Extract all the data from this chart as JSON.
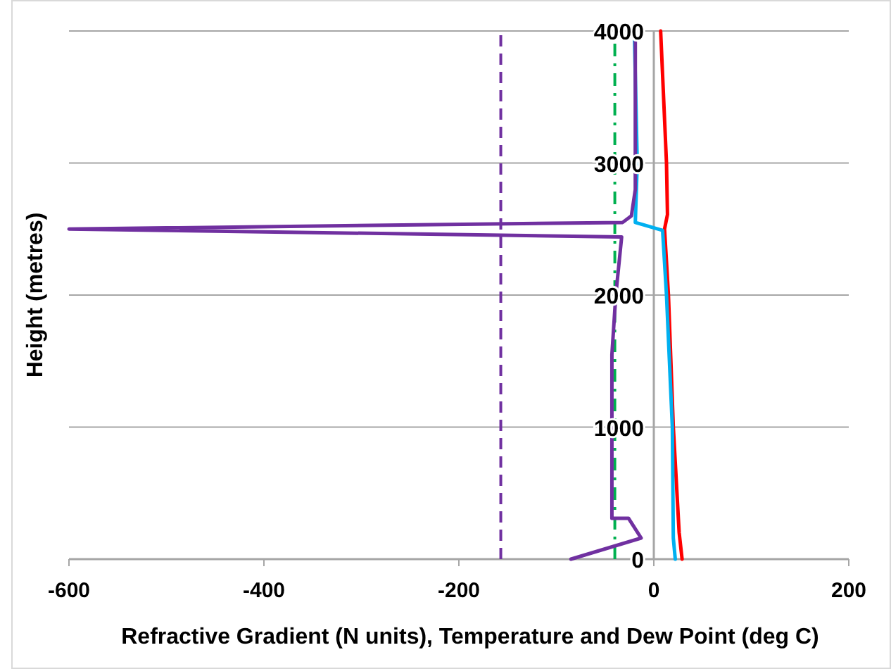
{
  "chart_data": {
    "type": "line",
    "xlabel": "Refractive Gradient (N units), Temperature and Dew Point (deg C)",
    "ylabel": "Height (metres)",
    "xlim": [
      -600,
      200
    ],
    "xticks": [
      -600,
      -400,
      -200,
      0,
      200
    ],
    "ylim": [
      0,
      4000
    ],
    "yticks": [
      0,
      1000,
      2000,
      3000,
      4000
    ],
    "grid": "y",
    "marker": "none",
    "series": [
      {
        "color": "#ff0000",
        "x": [
          29,
          26,
          20,
          15,
          11,
          14,
          13,
          7
        ],
        "values": [
          0,
          200,
          1000,
          2000,
          2500,
          2610,
          3000,
          4000
        ]
      },
      {
        "color": "#00b0f0",
        "x": [
          22,
          20,
          19,
          13,
          9,
          -19,
          -17,
          -20
        ],
        "values": [
          0,
          160,
          1000,
          2000,
          2490,
          2550,
          3000,
          4000
        ]
      },
      {
        "color": "#7030a0",
        "x": [
          -85,
          -13,
          -26,
          -43,
          -43,
          -43,
          -39,
          -33,
          -600,
          -32,
          -23,
          -19,
          -19
        ],
        "values": [
          0,
          160,
          310,
          310,
          1000,
          1550,
          2000,
          2440,
          2500,
          2550,
          2600,
          2800,
          4000
        ]
      }
    ],
    "ref_lines": [
      {
        "axis": "x",
        "value": -157,
        "color": "#7030a0",
        "line_style": "dashed"
      },
      {
        "axis": "x",
        "value": -40,
        "color": "#00b050",
        "line_style": "dotted"
      }
    ]
  }
}
